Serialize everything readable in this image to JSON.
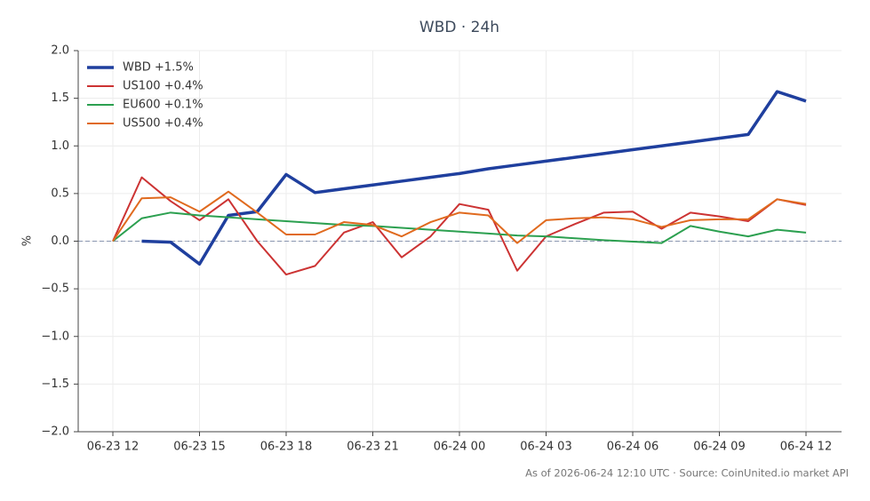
{
  "chart_data": {
    "type": "line",
    "title": "WBD · 24h",
    "ylabel": "%",
    "footer": "As of 2026-06-24 12:10 UTC · Source: CoinUnited.io market API",
    "categories": [
      "06-23 12",
      null,
      null,
      "06-23 15",
      null,
      null,
      "06-23 18",
      null,
      null,
      "06-23 21",
      null,
      null,
      "06-24 00",
      null,
      null,
      "06-24 03",
      null,
      null,
      "06-24 06",
      null,
      null,
      "06-24 09",
      null,
      null,
      "06-24 12"
    ],
    "series": [
      {
        "name": "WBD +1.5%",
        "color": "#1f3f9e",
        "linewidth": 3.5,
        "values": [
          null,
          0.0,
          -0.01,
          -0.24,
          0.27,
          0.31,
          0.7,
          0.51,
          0.55,
          0.59,
          0.63,
          0.67,
          0.71,
          0.76,
          0.8,
          0.84,
          0.88,
          0.92,
          0.96,
          1.0,
          1.04,
          1.08,
          1.12,
          1.57,
          1.47
        ]
      },
      {
        "name": "US100 +0.4%",
        "color": "#cc3333",
        "linewidth": 2,
        "values": [
          0.0,
          0.67,
          0.42,
          0.22,
          0.44,
          0.0,
          -0.35,
          -0.26,
          0.09,
          0.2,
          -0.17,
          0.05,
          0.39,
          0.33,
          -0.31,
          0.05,
          0.18,
          0.3,
          0.31,
          0.13,
          0.3,
          0.26,
          0.21,
          0.44,
          0.38
        ]
      },
      {
        "name": "EU600 +0.1%",
        "color": "#2ca050",
        "linewidth": 2,
        "values": [
          0.0,
          0.24,
          0.3,
          0.27,
          0.25,
          0.23,
          0.21,
          0.19,
          0.17,
          0.16,
          0.14,
          0.12,
          0.1,
          0.08,
          0.06,
          0.05,
          0.03,
          0.01,
          -0.005,
          -0.02,
          0.16,
          0.1,
          0.05,
          0.12,
          0.09
        ]
      },
      {
        "name": "US500 +0.4%",
        "color": "#e06a1e",
        "linewidth": 2,
        "values": [
          0.0,
          0.45,
          0.46,
          0.31,
          0.52,
          0.3,
          0.07,
          0.07,
          0.2,
          0.17,
          0.05,
          0.2,
          0.3,
          0.27,
          -0.02,
          0.22,
          0.24,
          0.25,
          0.23,
          0.15,
          0.22,
          0.23,
          0.23,
          0.44,
          0.39
        ]
      }
    ],
    "ylim": [
      -2.0,
      2.0
    ],
    "yticks": [
      {
        "value": -2.0,
        "label": "−2.0"
      },
      {
        "value": -1.5,
        "label": "−1.5"
      },
      {
        "value": -1.0,
        "label": "−1.0"
      },
      {
        "value": -0.5,
        "label": "−0.5"
      },
      {
        "value": 0.0,
        "label": "0.0"
      },
      {
        "value": 0.5,
        "label": "0.5"
      },
      {
        "value": 1.0,
        "label": "1.0"
      },
      {
        "value": 1.5,
        "label": "1.5"
      },
      {
        "value": 2.0,
        "label": "2.0"
      }
    ],
    "grid": true,
    "zero_line": true,
    "legend": "upper left"
  }
}
